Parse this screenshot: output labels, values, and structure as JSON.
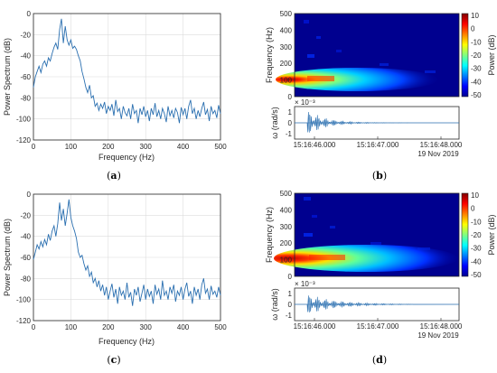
{
  "chart_data": [
    {
      "type": "line",
      "panel": "a",
      "xlabel": "Frequency (Hz)",
      "ylabel": "Power Spectrum (dB)",
      "xlim": [
        0,
        500
      ],
      "ylim": [
        -120,
        0
      ],
      "xticks": [
        "0",
        "100",
        "200",
        "300",
        "400",
        "500"
      ],
      "yticks": [
        "0",
        "-20",
        "-40",
        "-60",
        "-80",
        "-100",
        "-120"
      ],
      "grid": true,
      "x": [
        0,
        5,
        10,
        15,
        20,
        25,
        30,
        35,
        40,
        45,
        50,
        55,
        60,
        65,
        70,
        75,
        80,
        85,
        90,
        95,
        100,
        105,
        110,
        115,
        120,
        125,
        130,
        135,
        140,
        145,
        150,
        155,
        160,
        165,
        170,
        175,
        180,
        185,
        190,
        195,
        200,
        205,
        210,
        215,
        220,
        225,
        230,
        235,
        240,
        245,
        250,
        255,
        260,
        265,
        270,
        275,
        280,
        285,
        290,
        295,
        300,
        305,
        310,
        315,
        320,
        325,
        330,
        335,
        340,
        345,
        350,
        355,
        360,
        365,
        370,
        375,
        380,
        385,
        390,
        395,
        400,
        405,
        410,
        415,
        420,
        425,
        430,
        435,
        440,
        445,
        450,
        455,
        460,
        465,
        470,
        475,
        480,
        485,
        490,
        495,
        500
      ],
      "y": [
        -70,
        -60,
        -55,
        -50,
        -56,
        -48,
        -45,
        -50,
        -42,
        -45,
        -38,
        -32,
        -28,
        -34,
        -15,
        -5,
        -28,
        -12,
        -25,
        -30,
        -25,
        -33,
        -31,
        -34,
        -40,
        -45,
        -55,
        -62,
        -70,
        -75,
        -68,
        -80,
        -78,
        -88,
        -85,
        -92,
        -86,
        -90,
        -84,
        -95,
        -88,
        -92,
        -86,
        -97,
        -82,
        -93,
        -90,
        -100,
        -88,
        -94,
        -97,
        -90,
        -100,
        -86,
        -95,
        -92,
        -104,
        -90,
        -96,
        -88,
        -98,
        -92,
        -102,
        -90,
        -96,
        -85,
        -98,
        -92,
        -100,
        -90,
        -95,
        -103,
        -88,
        -97,
        -92,
        -99,
        -90,
        -94,
        -104,
        -89,
        -96,
        -90,
        -100,
        -88,
        -82,
        -95,
        -90,
        -100,
        -92,
        -98,
        -90,
        -84,
        -96,
        -91,
        -102,
        -88,
        -95,
        -92,
        -99,
        -87,
        -95
      ]
    },
    {
      "type": "heatmap",
      "panel": "b",
      "ylabel": "Frequency (Hz)",
      "ylim": [
        0,
        500
      ],
      "yticks": [
        "500",
        "400",
        "300",
        "200",
        "100",
        "0"
      ],
      "colorbar_label": "Power (dB)",
      "colorbar_ticks": [
        "10",
        "0",
        "-10",
        "-20",
        "-30",
        "-40",
        "-50"
      ],
      "clim": [
        -50,
        10
      ],
      "sub_ylabel": "ω (rad/s)",
      "sub_exponent": "× 10⁻³",
      "sub_yticks": [
        "1",
        "0",
        "-1"
      ],
      "xticks": [
        "15:16:46.000",
        "15:16:47.000",
        "15:16:48.000"
      ],
      "date": "19 Nov 2019"
    },
    {
      "type": "line",
      "panel": "c",
      "xlabel": "Frequency (Hz)",
      "ylabel": "Power Spectrum (dB)",
      "xlim": [
        0,
        500
      ],
      "ylim": [
        -120,
        0
      ],
      "xticks": [
        "0",
        "100",
        "200",
        "300",
        "400",
        "500"
      ],
      "yticks": [
        "0",
        "-20",
        "-40",
        "-60",
        "-80",
        "-100",
        "-120"
      ],
      "grid": true,
      "x": [
        0,
        5,
        10,
        15,
        20,
        25,
        30,
        35,
        40,
        45,
        50,
        55,
        60,
        65,
        70,
        75,
        80,
        85,
        90,
        95,
        100,
        105,
        110,
        115,
        120,
        125,
        130,
        135,
        140,
        145,
        150,
        155,
        160,
        165,
        170,
        175,
        180,
        185,
        190,
        195,
        200,
        205,
        210,
        215,
        220,
        225,
        230,
        235,
        240,
        245,
        250,
        255,
        260,
        265,
        270,
        275,
        280,
        285,
        290,
        295,
        300,
        305,
        310,
        315,
        320,
        325,
        330,
        335,
        340,
        345,
        350,
        355,
        360,
        365,
        370,
        375,
        380,
        385,
        390,
        395,
        400,
        405,
        410,
        415,
        420,
        425,
        430,
        435,
        440,
        445,
        450,
        455,
        460,
        465,
        470,
        475,
        480,
        485,
        490,
        495,
        500
      ],
      "y": [
        -62,
        -55,
        -48,
        -52,
        -45,
        -50,
        -43,
        -48,
        -38,
        -44,
        -35,
        -30,
        -40,
        -28,
        -8,
        -25,
        -14,
        -30,
        -18,
        -5,
        -22,
        -30,
        -35,
        -42,
        -55,
        -60,
        -58,
        -66,
        -72,
        -68,
        -78,
        -74,
        -84,
        -80,
        -88,
        -82,
        -92,
        -86,
        -96,
        -88,
        -100,
        -92,
        -85,
        -98,
        -90,
        -104,
        -88,
        -96,
        -92,
        -100,
        -84,
        -98,
        -93,
        -106,
        -90,
        -96,
        -88,
        -102,
        -94,
        -86,
        -100,
        -90,
        -97,
        -92,
        -104,
        -86,
        -95,
        -90,
        -100,
        -82,
        -96,
        -92,
        -100,
        -88,
        -94,
        -86,
        -102,
        -92,
        -96,
        -88,
        -100,
        -90,
        -84,
        -97,
        -92,
        -104,
        -88,
        -96,
        -90,
        -100,
        -86,
        -80,
        -94,
        -90,
        -100,
        -87,
        -95,
        -92,
        -98,
        -88,
        -96
      ]
    },
    {
      "type": "heatmap",
      "panel": "d",
      "ylabel": "Frequency (Hz)",
      "ylim": [
        0,
        500
      ],
      "yticks": [
        "500",
        "400",
        "300",
        "200",
        "100",
        "0"
      ],
      "colorbar_label": "Power (dB)",
      "colorbar_ticks": [
        "10",
        "0",
        "-10",
        "-20",
        "-30",
        "-40",
        "-50"
      ],
      "clim": [
        -50,
        10
      ],
      "sub_ylabel": "ω (rad/s)",
      "sub_exponent": "× 10⁻³",
      "sub_yticks": [
        "1",
        "0",
        "-1"
      ],
      "xticks": [
        "15:16:46.000",
        "15:16:47.000",
        "15:16:48.000"
      ],
      "date": "19 Nov 2019"
    }
  ],
  "panel_labels": [
    "(a)",
    "(b)",
    "(c)",
    "(d)"
  ],
  "colors": {
    "line": "#2a6fb0",
    "grid": "#dcdcdc",
    "axis": "#262626"
  }
}
